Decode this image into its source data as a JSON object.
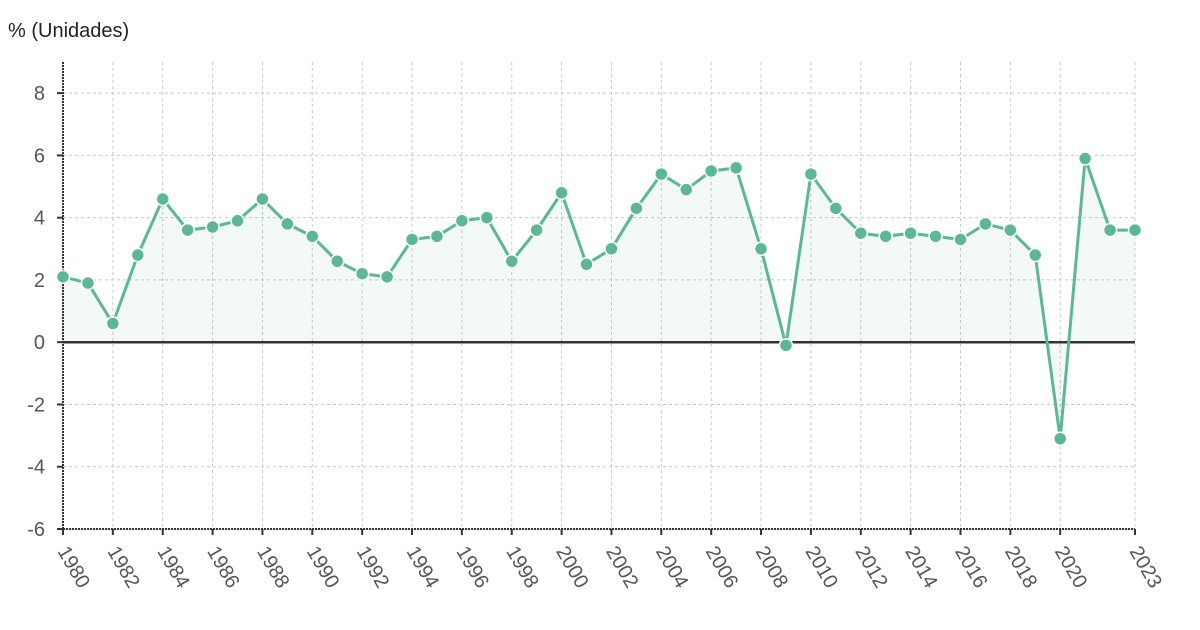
{
  "chart_data": {
    "type": "line",
    "ylabel": "% (Unidades)",
    "ylim": [
      -6,
      9
    ],
    "yticks": [
      -6,
      -4,
      -2,
      0,
      2,
      4,
      6,
      8
    ],
    "grid": true,
    "legend": "none",
    "x": [
      1980,
      1981,
      1982,
      1983,
      1984,
      1985,
      1986,
      1987,
      1988,
      1989,
      1990,
      1991,
      1992,
      1993,
      1994,
      1995,
      1996,
      1997,
      1998,
      1999,
      2000,
      2001,
      2002,
      2003,
      2004,
      2005,
      2006,
      2007,
      2008,
      2009,
      2010,
      2011,
      2012,
      2013,
      2014,
      2015,
      2016,
      2017,
      2018,
      2019,
      2020,
      2021,
      2022,
      2023
    ],
    "xtick_labels": [
      "1980",
      "1982",
      "1984",
      "1986",
      "1988",
      "1990",
      "1992",
      "1994",
      "1996",
      "1998",
      "2000",
      "2002",
      "2004",
      "2006",
      "2008",
      "2010",
      "2012",
      "2014",
      "2016",
      "2018",
      "2020",
      "2023"
    ],
    "series": [
      {
        "values": [
          2.1,
          1.9,
          0.6,
          2.8,
          4.6,
          3.6,
          3.7,
          3.9,
          4.6,
          3.8,
          3.4,
          2.6,
          2.2,
          2.1,
          3.3,
          3.4,
          3.9,
          4.0,
          2.6,
          3.6,
          4.8,
          2.5,
          3.0,
          4.3,
          5.4,
          4.9,
          5.5,
          5.6,
          3.0,
          -0.1,
          5.4,
          4.3,
          3.5,
          3.4,
          3.5,
          3.4,
          3.3,
          3.8,
          3.6,
          2.8,
          -3.1,
          5.9,
          3.6,
          3.6
        ],
        "color": "#5cb893"
      }
    ]
  }
}
